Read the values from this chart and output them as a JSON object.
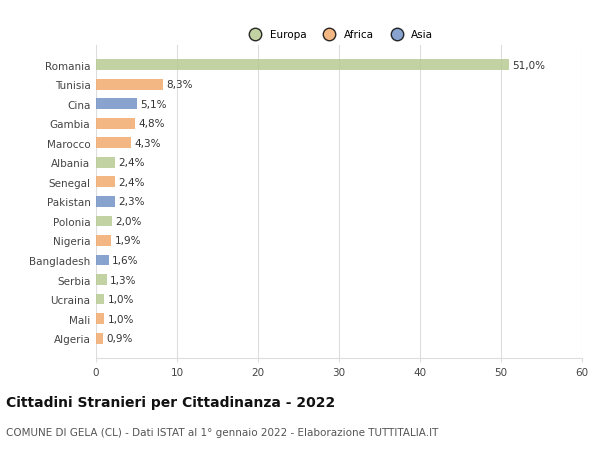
{
  "categories": [
    "Romania",
    "Tunisia",
    "Cina",
    "Gambia",
    "Marocco",
    "Albania",
    "Senegal",
    "Pakistan",
    "Polonia",
    "Nigeria",
    "Bangladesh",
    "Serbia",
    "Ucraina",
    "Mali",
    "Algeria"
  ],
  "values": [
    51.0,
    8.3,
    5.1,
    4.8,
    4.3,
    2.4,
    2.4,
    2.3,
    2.0,
    1.9,
    1.6,
    1.3,
    1.0,
    1.0,
    0.9
  ],
  "labels": [
    "51,0%",
    "8,3%",
    "5,1%",
    "4,8%",
    "4,3%",
    "2,4%",
    "2,4%",
    "2,3%",
    "2,0%",
    "1,9%",
    "1,6%",
    "1,3%",
    "1,0%",
    "1,0%",
    "0,9%"
  ],
  "colors": [
    "#b5c98e",
    "#f0a868",
    "#6e8fc4",
    "#f0a868",
    "#f0a868",
    "#b5c98e",
    "#f0a868",
    "#6e8fc4",
    "#b5c98e",
    "#f0a868",
    "#6e8fc4",
    "#b5c98e",
    "#b5c98e",
    "#f0a868",
    "#f0a868"
  ],
  "legend": {
    "Europa": "#b5c98e",
    "Africa": "#f0a868",
    "Asia": "#6e8fc4"
  },
  "xlim": [
    0,
    60
  ],
  "xticks": [
    0,
    10,
    20,
    30,
    40,
    50,
    60
  ],
  "title": "Cittadini Stranieri per Cittadinanza - 2022",
  "subtitle": "COMUNE DI GELA (CL) - Dati ISTAT al 1° gennaio 2022 - Elaborazione TUTTITALIA.IT",
  "background_color": "#ffffff",
  "grid_color": "#dddddd",
  "bar_alpha": 0.82,
  "label_fontsize": 7.5,
  "tick_fontsize": 7.5,
  "title_fontsize": 10,
  "subtitle_fontsize": 7.5
}
